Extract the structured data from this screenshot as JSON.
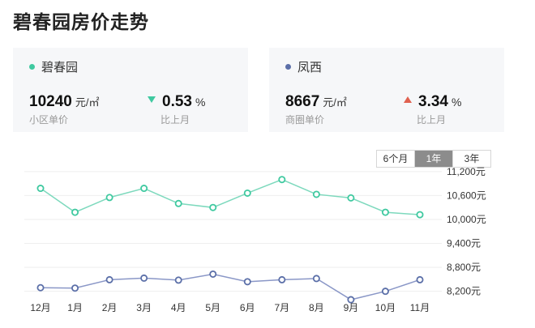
{
  "page": {
    "title": "碧春园房价走势"
  },
  "cards": [
    {
      "name": "碧春园",
      "dot_color": "#3fc9a0",
      "price": "10240",
      "unit": "元/㎡",
      "price_label": "小区单价",
      "trend": "down",
      "change": "0.53",
      "change_unit": "%",
      "change_label": "比上月"
    },
    {
      "name": "凤西",
      "dot_color": "#5b6fa8",
      "price": "8667",
      "unit": "元/㎡",
      "price_label": "商圈单价",
      "trend": "up",
      "change": "3.34",
      "change_unit": "%",
      "change_label": "比上月"
    }
  ],
  "range_tabs": {
    "items": [
      "6个月",
      "1年",
      "3年"
    ],
    "selected": "1年"
  },
  "chart_data": {
    "type": "line",
    "categories": [
      "12月",
      "1月",
      "2月",
      "3月",
      "4月",
      "5月",
      "6月",
      "7月",
      "8月",
      "9月",
      "10月",
      "11月"
    ],
    "series": [
      {
        "name": "碧春园",
        "color": "#7dd9bd",
        "values": [
          10780,
          10180,
          10550,
          10780,
          10400,
          10300,
          10660,
          11000,
          10630,
          10540,
          10180,
          10120
        ]
      },
      {
        "name": "凤西",
        "color": "#8a97c7",
        "values": [
          8290,
          8280,
          8490,
          8530,
          8480,
          8630,
          8440,
          8490,
          8520,
          7990,
          8200,
          8490
        ]
      }
    ],
    "y_ticks": [
      11200,
      10600,
      10000,
      9400,
      8800,
      8200
    ],
    "y_tick_labels": [
      "11,200元",
      "10,600元",
      "10,000元",
      "9,400元",
      "8,800元",
      "8,200元"
    ],
    "ylim": [
      7950,
      11400
    ],
    "grid": true
  }
}
